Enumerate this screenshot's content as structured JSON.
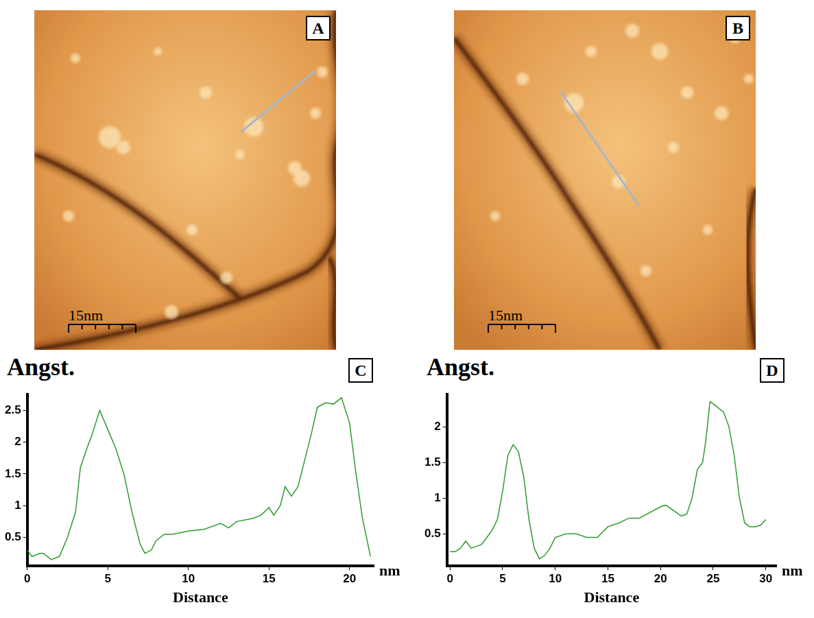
{
  "images": [
    {
      "label": "A",
      "scale_bar": "15nm"
    },
    {
      "label": "B",
      "scale_bar": "15nm"
    }
  ],
  "chart_data": [
    {
      "type": "line",
      "title": "C",
      "y_label": "Angst.",
      "x_label": "Distance",
      "x_unit": "nm",
      "x": [
        0,
        0.3,
        0.8,
        1,
        1.5,
        2,
        2.5,
        3,
        3.3,
        3.7,
        4,
        4.5,
        5,
        5.5,
        6,
        6.5,
        7,
        7.3,
        7.7,
        8,
        8.5,
        9,
        10,
        11,
        12,
        12.5,
        13,
        14,
        14.5,
        15,
        15.3,
        15.7,
        16,
        16.4,
        16.8,
        17.2,
        17.6,
        18,
        18.5,
        19,
        19.5,
        20,
        20.4,
        20.8,
        21.3
      ],
      "values": [
        0.3,
        0.2,
        0.25,
        0.25,
        0.15,
        0.2,
        0.5,
        0.9,
        1.6,
        1.9,
        2.1,
        2.5,
        2.2,
        1.9,
        1.5,
        0.9,
        0.4,
        0.25,
        0.3,
        0.45,
        0.55,
        0.55,
        0.6,
        0.63,
        0.72,
        0.65,
        0.75,
        0.8,
        0.85,
        0.97,
        0.85,
        1.0,
        1.3,
        1.15,
        1.3,
        1.7,
        2.1,
        2.55,
        2.62,
        2.6,
        2.7,
        2.3,
        1.5,
        0.8,
        0.2
      ],
      "color": "#2e9a2e",
      "xlim": [
        0,
        21.5
      ],
      "xticks": [
        0,
        5,
        10,
        15,
        20
      ],
      "ylim": [
        0.05,
        2.75
      ],
      "yticks": [
        0.5,
        1,
        1.5,
        2,
        2.5
      ],
      "grid": false
    },
    {
      "type": "line",
      "title": "D",
      "y_label": "Angst.",
      "x_label": "Distance",
      "x_unit": "nm",
      "x": [
        0,
        0.5,
        1,
        1.5,
        2,
        3,
        3.5,
        4,
        4.5,
        5,
        5.5,
        6,
        6.5,
        7,
        7.5,
        8,
        8.5,
        9,
        9.5,
        10,
        11,
        12,
        13,
        14,
        15,
        16,
        17,
        18,
        19,
        20,
        20.5,
        21,
        22,
        22.5,
        23,
        23.5,
        24,
        24.3,
        24.7,
        25.2,
        26,
        26.5,
        27,
        27.5,
        28,
        28.5,
        29,
        29.5,
        30
      ],
      "values": [
        0.25,
        0.25,
        0.3,
        0.4,
        0.3,
        0.35,
        0.45,
        0.55,
        0.7,
        1.1,
        1.6,
        1.75,
        1.65,
        1.3,
        0.7,
        0.3,
        0.15,
        0.2,
        0.3,
        0.45,
        0.5,
        0.5,
        0.45,
        0.45,
        0.6,
        0.65,
        0.72,
        0.72,
        0.8,
        0.88,
        0.9,
        0.85,
        0.75,
        0.78,
        1.0,
        1.4,
        1.5,
        1.8,
        2.35,
        2.3,
        2.2,
        2.0,
        1.6,
        1.0,
        0.65,
        0.6,
        0.6,
        0.62,
        0.7
      ],
      "color": "#2e9a2e",
      "xlim": [
        -0.3,
        31
      ],
      "xticks": [
        0,
        5,
        10,
        15,
        20,
        25,
        30
      ],
      "ylim": [
        0.05,
        2.45
      ],
      "yticks": [
        0.5,
        1,
        1.5,
        2
      ],
      "grid": false
    }
  ]
}
